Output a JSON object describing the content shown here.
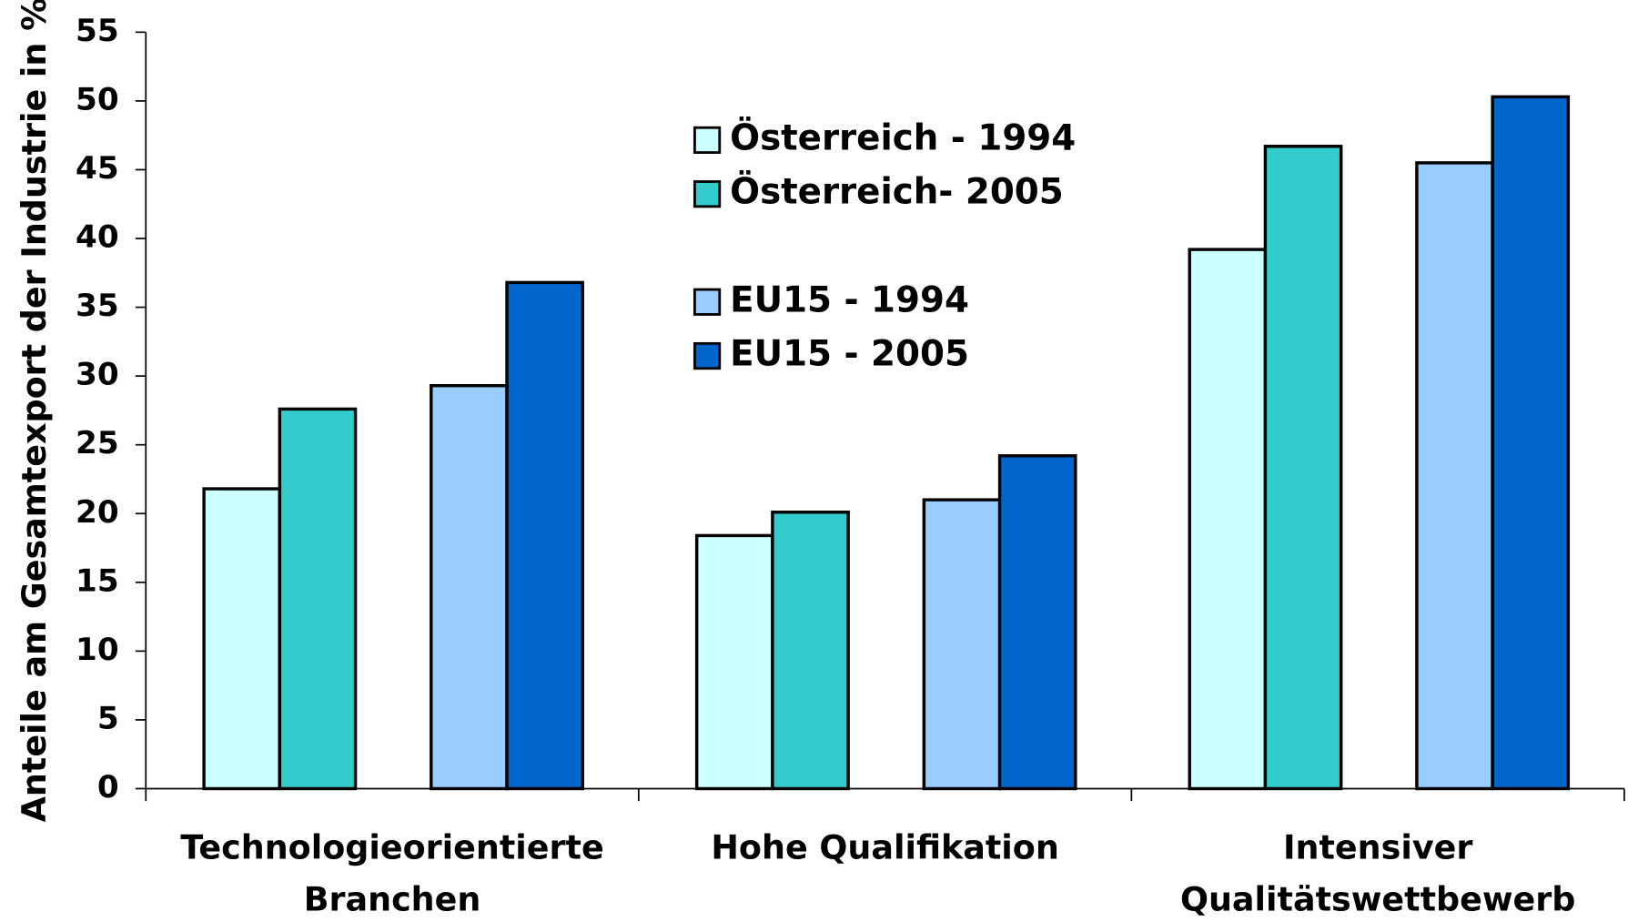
{
  "chart_data": {
    "type": "bar",
    "y_label": "Anteile am Gesamtexport der Industrie in %",
    "categories": [
      "Technologieorientierte\nBranchen",
      "Hohe Qualifikation",
      "Intensiver\nQualitätswettbewerb"
    ],
    "series": [
      {
        "name": "Österreich - 1994",
        "color": "#ccffff",
        "values": [
          21.8,
          18.4,
          39.2
        ]
      },
      {
        "name": "Österreich- 2005",
        "color": "#33cccc",
        "values": [
          27.6,
          20.1,
          46.7
        ]
      },
      {
        "name": "EU15 - 1994",
        "color": "#99ccff",
        "values": [
          29.3,
          21.0,
          45.5
        ]
      },
      {
        "name": "EU15 - 2005",
        "color": "#0066cc",
        "values": [
          36.8,
          24.2,
          50.3
        ]
      }
    ],
    "ylim": [
      0,
      55
    ],
    "yticks": [
      0,
      5,
      10,
      15,
      20,
      25,
      30,
      35,
      40,
      45,
      50,
      55
    ]
  }
}
